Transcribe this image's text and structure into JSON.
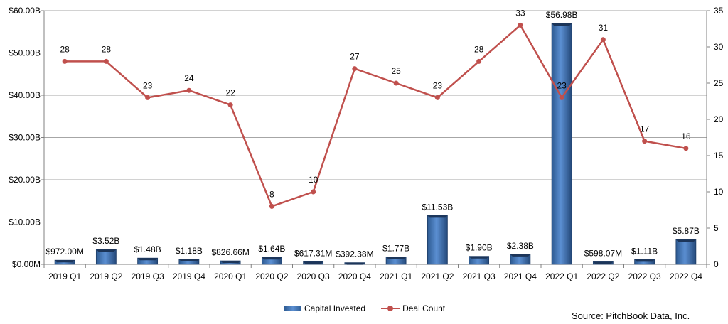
{
  "chart_data": {
    "type": "bar",
    "categories": [
      "2019 Q1",
      "2019 Q2",
      "2019 Q3",
      "2019 Q4",
      "2020 Q1",
      "2020 Q2",
      "2020 Q3",
      "2020 Q4",
      "2021 Q1",
      "2021 Q2",
      "2021 Q3",
      "2021 Q4",
      "2022 Q1",
      "2022 Q2",
      "2022 Q3",
      "2022 Q4"
    ],
    "series": [
      {
        "name": "Capital Invested",
        "type": "bar",
        "axis": "left",
        "color": "#4f81bd",
        "values": [
          0.972,
          3.52,
          1.48,
          1.18,
          0.82666,
          1.64,
          0.61731,
          0.39238,
          1.77,
          11.53,
          1.9,
          2.38,
          56.98,
          0.59807,
          1.11,
          5.87
        ],
        "labels": [
          "$972.00M",
          "$3.52B",
          "$1.48B",
          "$1.18B",
          "$826.66M",
          "$1.64B",
          "$617.31M",
          "$392.38M",
          "$1.77B",
          "$11.53B",
          "$1.90B",
          "$2.38B",
          "$56.98B",
          "$598.07M",
          "$1.11B",
          "$5.87B"
        ]
      },
      {
        "name": "Deal Count",
        "type": "line",
        "axis": "right",
        "color": "#c0504d",
        "values": [
          28,
          28,
          23,
          24,
          22,
          8,
          10,
          27,
          25,
          23,
          28,
          33,
          23,
          31,
          17,
          16
        ],
        "labels": [
          "28",
          "28",
          "23",
          "24",
          "22",
          "8",
          "10",
          "27",
          "25",
          "23",
          "28",
          "33",
          "23",
          "31",
          "17",
          "16"
        ]
      }
    ],
    "y_left": {
      "lim": [
        0,
        60
      ],
      "ticks": [
        0,
        10,
        20,
        30,
        40,
        50,
        60
      ],
      "tick_labels": [
        "$0.00M",
        "$10.00B",
        "$20.00B",
        "$30.00B",
        "$40.00B",
        "$50.00B",
        "$60.00B"
      ]
    },
    "y_right": {
      "lim": [
        0,
        35
      ],
      "ticks": [
        0,
        5,
        10,
        15,
        20,
        25,
        30,
        35
      ],
      "tick_labels": [
        "0",
        "5",
        "10",
        "15",
        "20",
        "25",
        "30",
        "35"
      ]
    },
    "grid": true,
    "legend_position": "bottom",
    "title": "",
    "xlabel": "",
    "ylabel": ""
  },
  "legend": {
    "bar_label": "Capital Invested",
    "line_label": "Deal Count"
  },
  "source": "Source: PitchBook Data, Inc."
}
